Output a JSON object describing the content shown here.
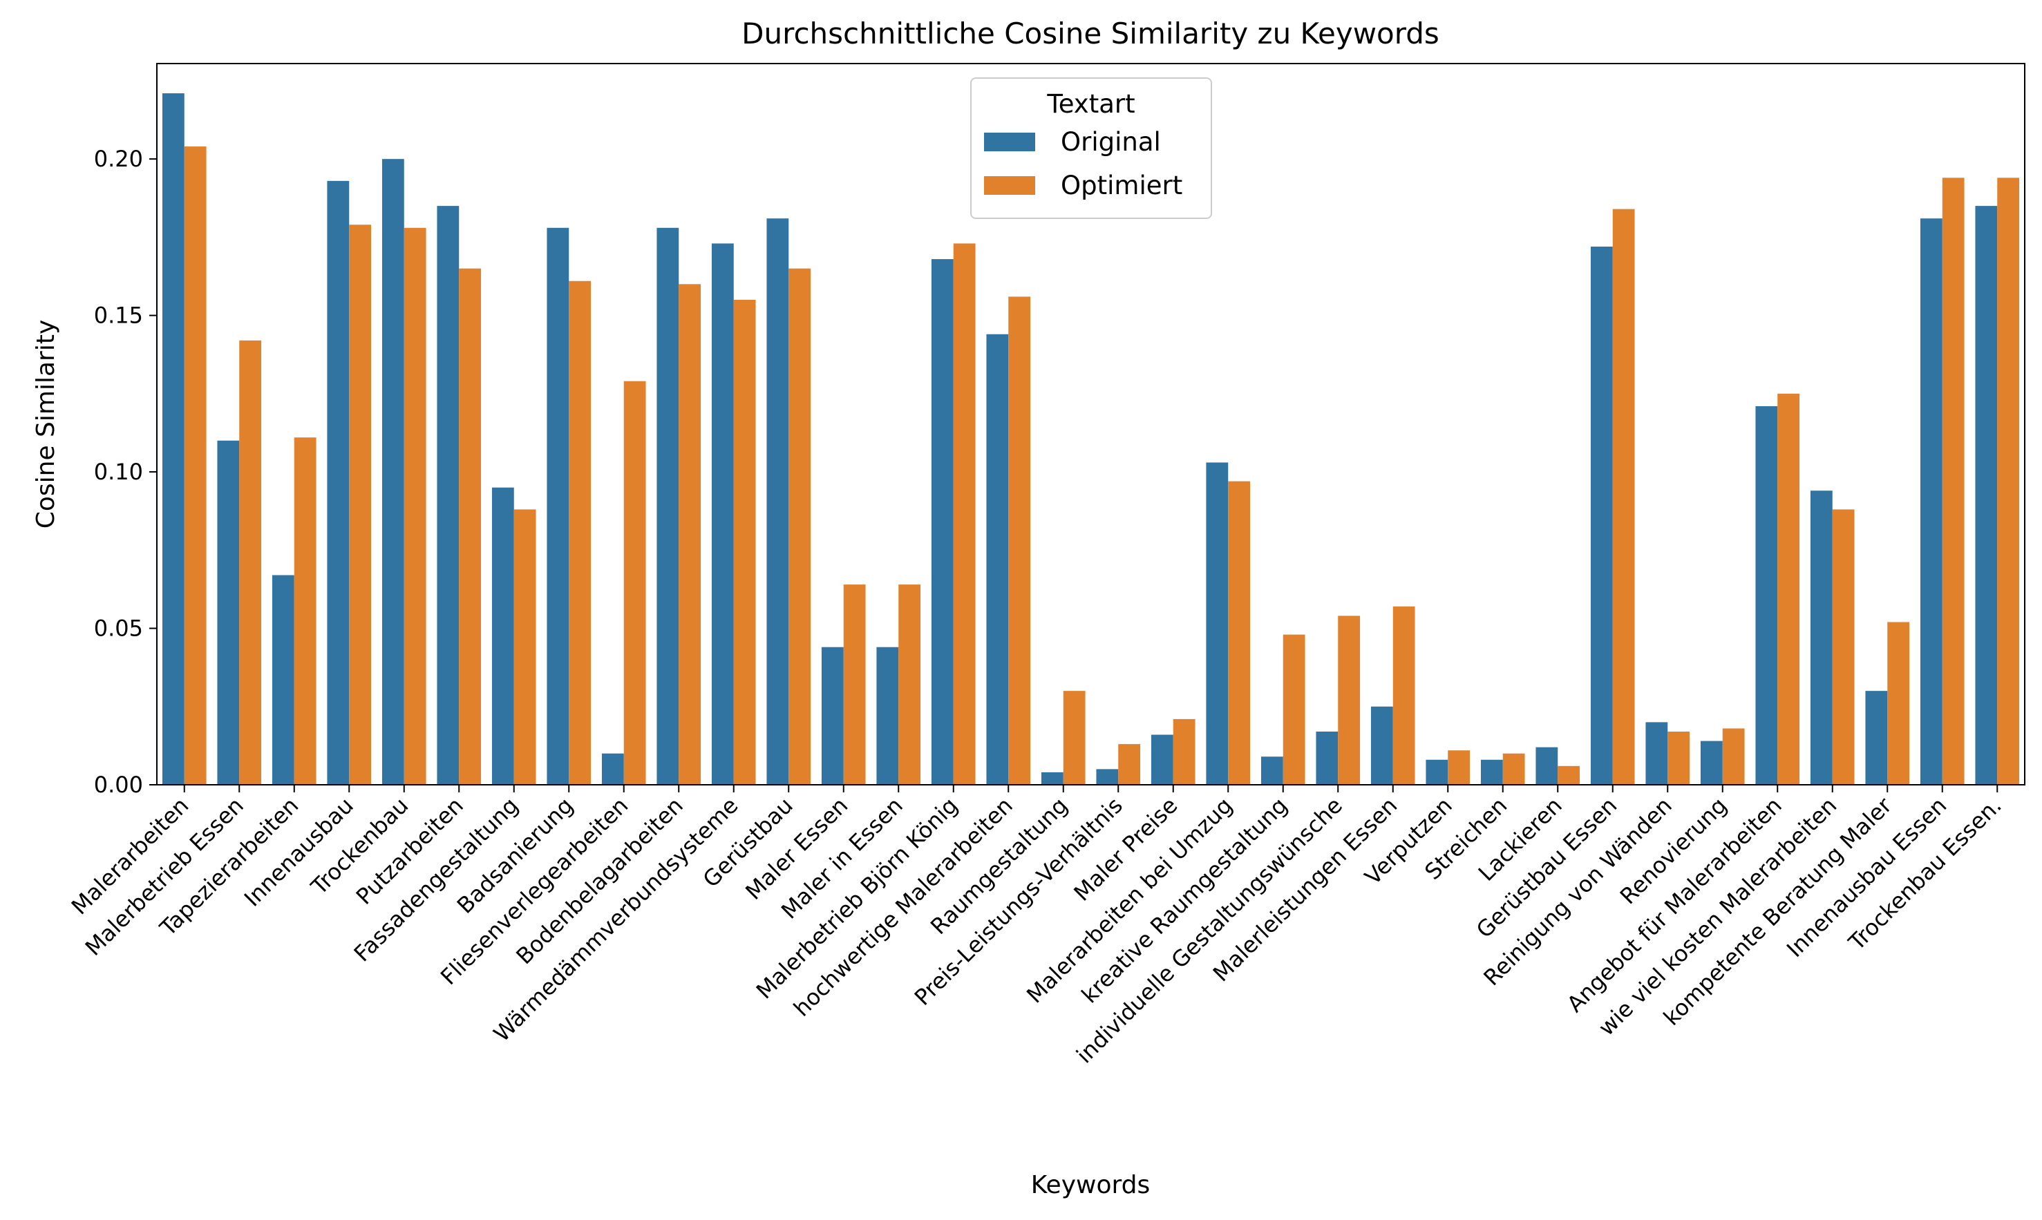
{
  "chart_data": {
    "type": "bar",
    "title": "Durchschnittliche Cosine Similarity zu Keywords",
    "xlabel": "Keywords",
    "ylabel": "Cosine Similarity",
    "ylim": [
      0,
      0.2305
    ],
    "yticks": [
      "0.00",
      "0.05",
      "0.10",
      "0.15",
      "0.20"
    ],
    "grid": false,
    "legend": {
      "title": "Textart",
      "placement": "top-center"
    },
    "categories": [
      "Malerarbeiten",
      "Malerbetrieb Essen",
      "Tapezierarbeiten",
      "Innenausbau",
      "Trockenbau",
      "Putzarbeiten",
      "Fassadengestaltung",
      "Badsanierung",
      "Fliesenverlegearbeiten",
      "Bodenbelagarbeiten",
      "Wärmedämmverbundsysteme",
      "Gerüstbau",
      "Maler Essen",
      "Maler in Essen",
      "Malerbetrieb Björn König",
      "hochwertige Malerarbeiten",
      "Raumgestaltung",
      "Preis-Leistungs-Verhältnis",
      "Maler Preise",
      "Malerarbeiten bei Umzug",
      "kreative Raumgestaltung",
      "individuelle Gestaltungswünsche",
      "Malerleistungen Essen",
      "Verputzen",
      "Streichen",
      "Lackieren",
      "Gerüstbau Essen",
      "Reinigung von Wänden",
      "Renovierung",
      "Angebot für Malerarbeiten",
      "wie viel kosten Malerarbeiten",
      "kompetente Beratung Maler",
      "Innenausbau Essen",
      "Trockenbau Essen."
    ],
    "series": [
      {
        "name": "Original",
        "color": "#3274a1",
        "values": [
          0.221,
          0.11,
          0.067,
          0.193,
          0.2,
          0.185,
          0.095,
          0.178,
          0.01,
          0.178,
          0.173,
          0.181,
          0.044,
          0.044,
          0.168,
          0.144,
          0.004,
          0.005,
          0.016,
          0.103,
          0.009,
          0.017,
          0.025,
          0.008,
          0.008,
          0.012,
          0.172,
          0.02,
          0.014,
          0.121,
          0.094,
          0.03,
          0.181,
          0.185
        ]
      },
      {
        "name": "Optimiert",
        "color": "#e1812c",
        "values": [
          0.204,
          0.142,
          0.111,
          0.179,
          0.178,
          0.165,
          0.088,
          0.161,
          0.129,
          0.16,
          0.155,
          0.165,
          0.064,
          0.064,
          0.173,
          0.156,
          0.03,
          0.013,
          0.021,
          0.097,
          0.048,
          0.054,
          0.057,
          0.011,
          0.01,
          0.006,
          0.184,
          0.017,
          0.018,
          0.125,
          0.088,
          0.052,
          0.194,
          0.194
        ]
      }
    ]
  }
}
